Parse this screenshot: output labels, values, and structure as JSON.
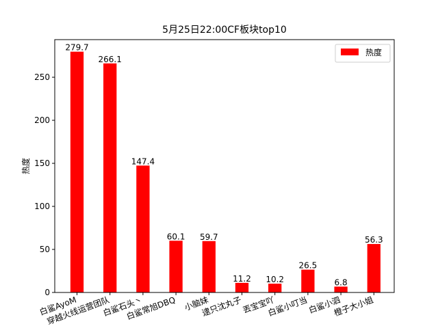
{
  "chart_data": {
    "type": "bar",
    "title": "5月25日22:00CF板块top10",
    "xlabel": "",
    "ylabel": "热度",
    "categories": [
      "白鲨AyoM",
      "穿越火线运营团队",
      "白鲨石头丶",
      "白鲨常旭DBQ",
      "小脑妹",
      "逮只沈丸子",
      "丟宝宝吖",
      "白鲨小叮当",
      "白鲨小泗",
      "橙子大小姐"
    ],
    "series": [
      {
        "name": "热度",
        "values": [
          279.7,
          266.1,
          147.4,
          60.1,
          59.7,
          11.2,
          10.2,
          26.5,
          6.8,
          56.3
        ],
        "color": "#ff0000"
      }
    ],
    "ylim": [
      0,
      293.7
    ],
    "yticks": [
      0,
      50,
      100,
      150,
      200,
      250
    ],
    "grid": false,
    "legend": "top-right"
  }
}
